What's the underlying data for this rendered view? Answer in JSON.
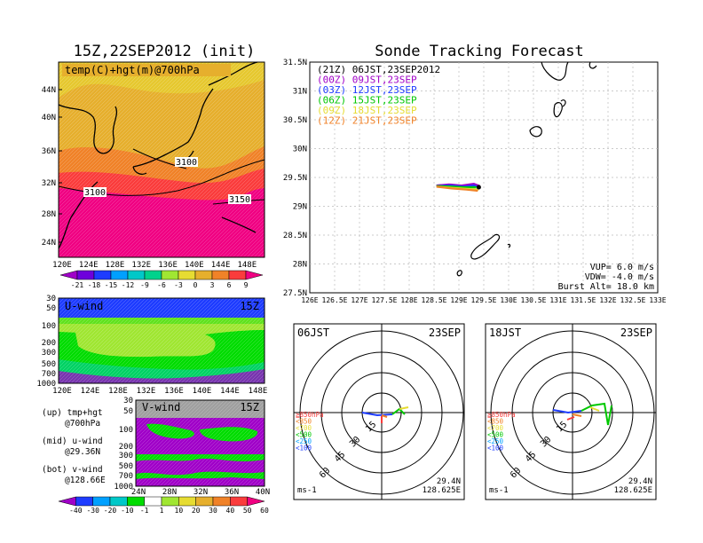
{
  "left_title": "15Z,22SEP2012 (init)",
  "right_title": "Sonde Tracking Forecast",
  "top_map": {
    "label": "temp(C)+hgt(m)@700hPa",
    "lat_ticks": [
      "44N",
      "40N",
      "36N",
      "32N",
      "28N",
      "24N"
    ],
    "lon_ticks": [
      "120E",
      "124E",
      "128E",
      "132E",
      "136E",
      "140E",
      "144E",
      "148E"
    ],
    "contour_labels": [
      "3100",
      "3100",
      "3150"
    ],
    "colorbar_ticks": [
      "-21",
      "-18",
      "-15",
      "-12",
      "-9",
      "-6",
      "-3",
      "0",
      "3",
      "6",
      "9"
    ],
    "colorbar_colors": [
      "#a000c8",
      "#6e00dc",
      "#1e3cff",
      "#00a0ff",
      "#00c8c8",
      "#00d28c",
      "#a0e632",
      "#e6dc32",
      "#e6af2d",
      "#f08228",
      "#fa3c3c",
      "#f00082"
    ]
  },
  "u_wind": {
    "label": "U-wind",
    "time": "15Z",
    "levels": [
      "30",
      "50",
      "100",
      "200",
      "300",
      "500",
      "700",
      "1000"
    ],
    "lon_ticks": [
      "120E",
      "124E",
      "128E",
      "132E",
      "136E",
      "140E",
      "144E",
      "148E"
    ]
  },
  "v_wind": {
    "label": "V-wind",
    "time": "15Z",
    "levels": [
      "30",
      "50",
      "100",
      "200",
      "300",
      "500",
      "700",
      "1000"
    ],
    "lat_ticks": [
      "24N",
      "28N",
      "32N",
      "36N",
      "40N"
    ]
  },
  "notes": [
    {
      "line1": "(up) tmp+hgt",
      "line2": "@700hPa"
    },
    {
      "line1": "(mid) u-wind",
      "line2": "@29.36N"
    },
    {
      "line1": "(bot) v-wind",
      "line2": "@128.66E"
    }
  ],
  "wind_colorbar": {
    "ticks": [
      "-40",
      "-30",
      "-20",
      "-10",
      "-1",
      "1",
      "10",
      "20",
      "30",
      "40",
      "50",
      "60"
    ],
    "colors": [
      "#a000c8",
      "#1e3cff",
      "#00a0ff",
      "#00c8c8",
      "#00dc00",
      "#ffffff",
      "#a0e632",
      "#e6dc32",
      "#e6af2d",
      "#f08228",
      "#fa3c3c",
      "#f00082"
    ]
  },
  "track_map": {
    "lat_ticks": [
      "31.5N",
      "31N",
      "30.5N",
      "30N",
      "29.5N",
      "29N",
      "28.5N",
      "28N",
      "27.5N"
    ],
    "lon_ticks": [
      "126E",
      "126.5E",
      "127E",
      "127.5E",
      "128E",
      "128.5E",
      "129E",
      "129.5E",
      "130E",
      "130.5E",
      "131E",
      "131.5E",
      "132E",
      "132.5E",
      "133E"
    ],
    "legend": [
      {
        "text": "(21Z) 06JST,23SEP2012",
        "color": "#000000"
      },
      {
        "text": "(00Z) 09JST,23SEP",
        "color": "#a000c8"
      },
      {
        "text": "(03Z) 12JST,23SEP",
        "color": "#1e3cff"
      },
      {
        "text": "(06Z) 15JST,23SEP",
        "color": "#00c800"
      },
      {
        "text": "(09Z) 18JST,23SEP",
        "color": "#e6dc32"
      },
      {
        "text": "(12Z) 21JST,23SEP",
        "color": "#f08228"
      }
    ],
    "params": [
      "VUP= 6.0 m/s",
      "VDW= -4.0 m/s",
      "Burst Alt= 18.0 km"
    ]
  },
  "polar_06": {
    "time": "06JST",
    "date": "23SEP",
    "ring_labels": [
      "15",
      "30",
      "45",
      "60"
    ],
    "unit": "ms-1",
    "lat": "29.4N",
    "lon": "128.625E"
  },
  "polar_18": {
    "time": "18JST",
    "date": "23SEP",
    "ring_labels": [
      "15",
      "30",
      "45",
      "60"
    ],
    "unit": "ms-1",
    "lat": "29.4N",
    "lon": "128.625E"
  },
  "polar_legend": [
    {
      "text": "≧850hPa",
      "color": "#fa3c3c"
    },
    {
      "text": "<850",
      "color": "#f08228"
    },
    {
      "text": "<700",
      "color": "#e6dc32"
    },
    {
      "text": "<500",
      "color": "#00c800"
    },
    {
      "text": "<250",
      "color": "#00a0ff"
    },
    {
      "text": "<100",
      "color": "#1e3cff"
    }
  ],
  "chart_data": [
    {
      "type": "heatmap",
      "title": "temp(C)+hgt(m)@700hPa",
      "x_range": [
        120,
        150
      ],
      "y_range": [
        22,
        48
      ],
      "contours": [
        3100,
        3100,
        3150
      ]
    },
    {
      "type": "heatmap",
      "title": "U-wind",
      "levels": [
        30,
        50,
        100,
        200,
        300,
        500,
        700,
        1000
      ],
      "x_range": [
        120,
        150
      ]
    },
    {
      "type": "heatmap",
      "title": "V-wind",
      "levels": [
        30,
        50,
        100,
        200,
        300,
        500,
        700,
        1000
      ],
      "x_range": [
        22,
        40
      ]
    },
    {
      "type": "line",
      "title": "Sonde Tracking Forecast",
      "xlim": [
        126,
        133
      ],
      "ylim": [
        27.5,
        31.5
      ],
      "series": [
        {
          "name": "(21Z) 06JST,23SEP2012",
          "x": [
            128.55,
            128.8,
            129.05,
            129.3,
            129.4
          ],
          "y": [
            29.36,
            29.37,
            29.35,
            29.38,
            29.34
          ]
        },
        {
          "name": "(00Z) 09JST,23SEP",
          "x": [
            128.55,
            128.8,
            129.05,
            129.3,
            129.42
          ],
          "y": [
            29.36,
            29.38,
            29.36,
            29.39,
            29.35
          ]
        },
        {
          "name": "(03Z) 12JST,23SEP",
          "x": [
            128.55,
            128.8,
            129.1,
            129.3,
            129.4
          ],
          "y": [
            29.35,
            29.36,
            29.34,
            29.36,
            29.33
          ]
        },
        {
          "name": "(06Z) 15JST,23SEP",
          "x": [
            128.55,
            128.85,
            129.1,
            129.35
          ],
          "y": [
            29.35,
            29.34,
            29.33,
            29.33
          ]
        },
        {
          "name": "(09Z) 18JST,23SEP",
          "x": [
            128.55,
            128.85,
            129.2,
            129.4
          ],
          "y": [
            29.34,
            29.32,
            29.3,
            29.29
          ]
        },
        {
          "name": "(12Z) 21JST,23SEP",
          "x": [
            128.55,
            128.85,
            129.15,
            129.38
          ],
          "y": [
            29.34,
            29.31,
            29.29,
            29.27
          ]
        }
      ]
    }
  ]
}
